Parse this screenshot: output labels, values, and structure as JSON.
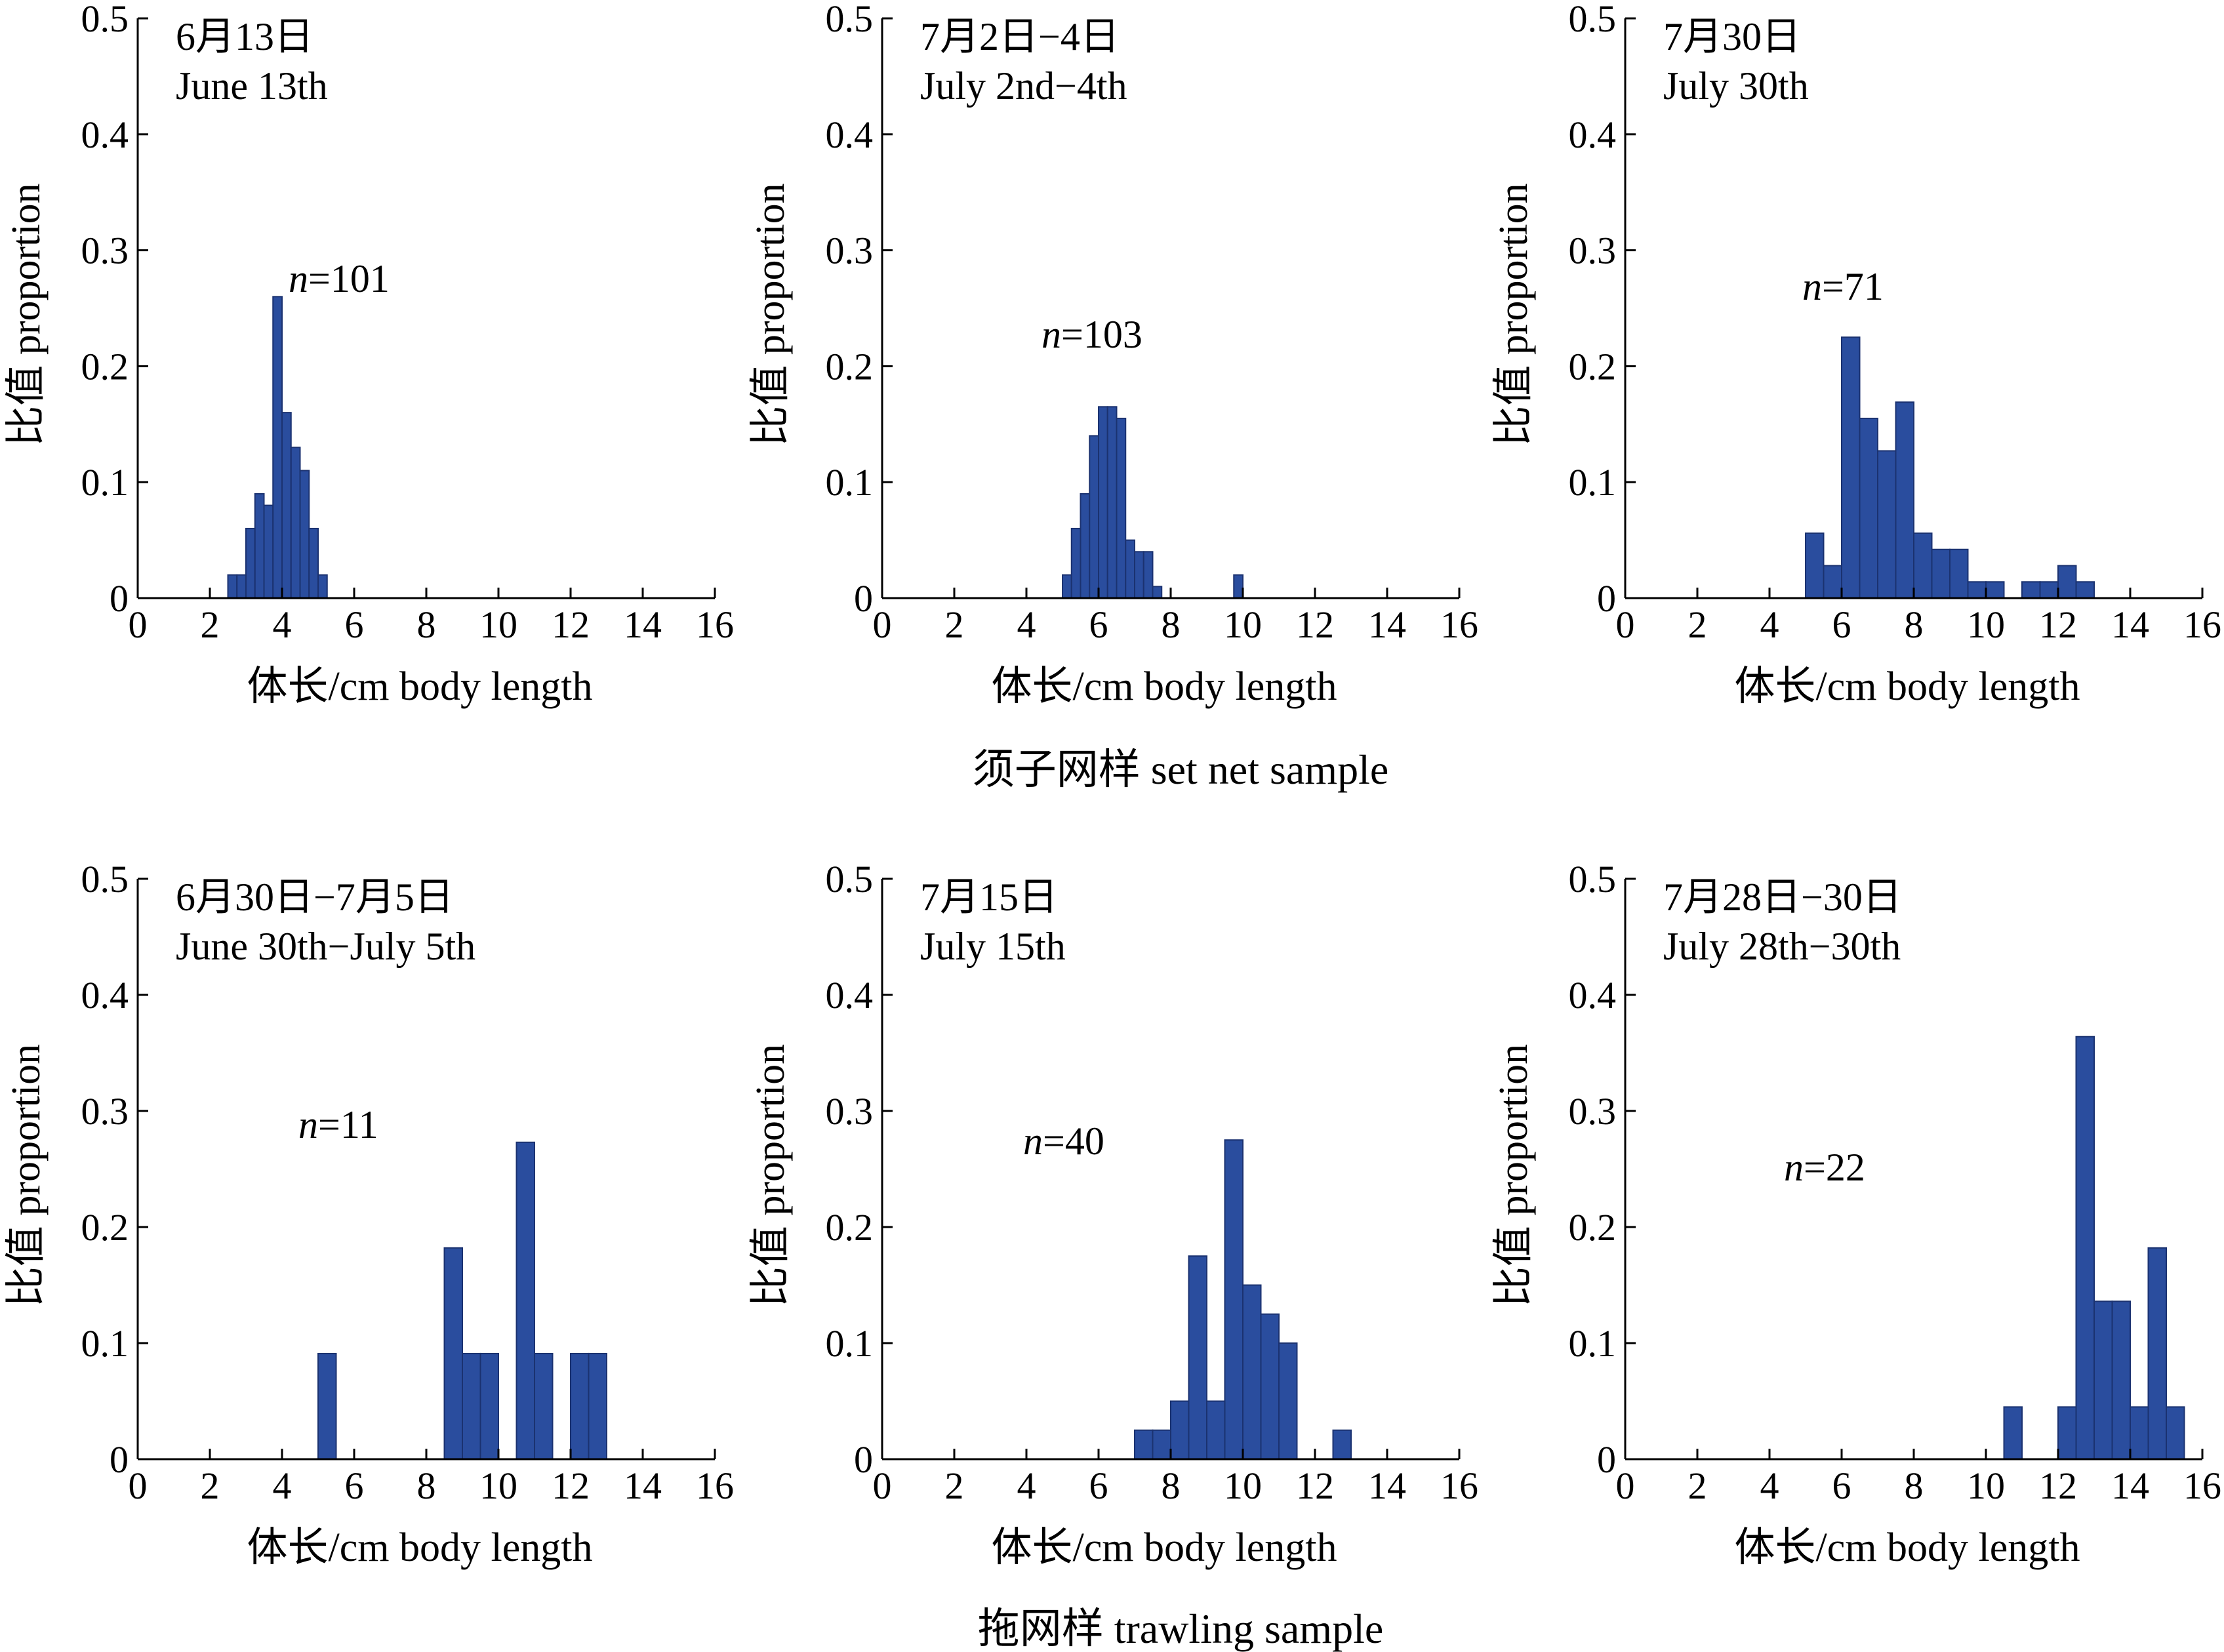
{
  "bar_color": "#2a4d9e",
  "bar_edge": "#1b3270",
  "groups": [
    {
      "label": "须子网样 set net sample"
    },
    {
      "label": "拖网样 trawling sample"
    }
  ],
  "chart_data": [
    {
      "type": "bar",
      "group": 0,
      "date_cn": "6月13日",
      "date_en": "June 13th",
      "n_prefix": "n",
      "n_value": "=101",
      "xlabel": "体长/cm body length",
      "ylabel": "比值 proportion",
      "xlim": [
        0,
        16
      ],
      "ylim": [
        0,
        0.5
      ],
      "bin_width": 0.25,
      "xticks": [
        "0",
        "2",
        "4",
        "6",
        "8",
        "10",
        "12",
        "14",
        "16"
      ],
      "yticks": [
        "0",
        "0.1",
        "0.2",
        "0.3",
        "0.4",
        "0.5"
      ],
      "bins": [
        [
          2.5,
          0.02
        ],
        [
          2.75,
          0.02
        ],
        [
          3.0,
          0.06
        ],
        [
          3.25,
          0.09
        ],
        [
          3.5,
          0.08
        ],
        [
          3.75,
          0.26
        ],
        [
          4.0,
          0.16
        ],
        [
          4.25,
          0.13
        ],
        [
          4.5,
          0.11
        ],
        [
          4.75,
          0.06
        ],
        [
          5.0,
          0.02
        ]
      ]
    },
    {
      "type": "bar",
      "group": 0,
      "date_cn": "7月2日−4日",
      "date_en": "July 2nd−4th",
      "n_prefix": "n",
      "n_value": "=103",
      "xlabel": "体长/cm body length",
      "ylabel": "比值 proportion",
      "xlim": [
        0,
        16
      ],
      "ylim": [
        0,
        0.5
      ],
      "bin_width": 0.25,
      "xticks": [
        "0",
        "2",
        "4",
        "6",
        "8",
        "10",
        "12",
        "14",
        "16"
      ],
      "yticks": [
        "0",
        "0.1",
        "0.2",
        "0.3",
        "0.4",
        "0.5"
      ],
      "bins": [
        [
          5.0,
          0.02
        ],
        [
          5.25,
          0.06
        ],
        [
          5.5,
          0.09
        ],
        [
          5.75,
          0.14
        ],
        [
          6.0,
          0.165
        ],
        [
          6.25,
          0.165
        ],
        [
          6.5,
          0.155
        ],
        [
          6.75,
          0.05
        ],
        [
          7.0,
          0.04
        ],
        [
          7.25,
          0.04
        ],
        [
          7.5,
          0.01
        ],
        [
          9.75,
          0.02
        ]
      ]
    },
    {
      "type": "bar",
      "group": 0,
      "date_cn": "7月30日",
      "date_en": "July 30th",
      "n_prefix": "n",
      "n_value": "=71",
      "xlabel": "体长/cm body length",
      "ylabel": "比值 proportion",
      "xlim": [
        0,
        16
      ],
      "ylim": [
        0,
        0.5
      ],
      "bin_width": 0.5,
      "xticks": [
        "0",
        "2",
        "4",
        "6",
        "8",
        "10",
        "12",
        "14",
        "16"
      ],
      "yticks": [
        "0",
        "0.1",
        "0.2",
        "0.3",
        "0.4",
        "0.5"
      ],
      "bins": [
        [
          5.0,
          0.056
        ],
        [
          5.5,
          0.028
        ],
        [
          6.0,
          0.225
        ],
        [
          6.5,
          0.155
        ],
        [
          7.0,
          0.127
        ],
        [
          7.5,
          0.169
        ],
        [
          8.0,
          0.056
        ],
        [
          8.5,
          0.042
        ],
        [
          9.0,
          0.042
        ],
        [
          9.5,
          0.014
        ],
        [
          10.0,
          0.014
        ],
        [
          11.0,
          0.014
        ],
        [
          11.5,
          0.014
        ],
        [
          12.0,
          0.028
        ],
        [
          12.5,
          0.014
        ]
      ]
    },
    {
      "type": "bar",
      "group": 1,
      "date_cn": "6月30日−7月5日",
      "date_en": "June 30th−July 5th",
      "n_prefix": "n",
      "n_value": "=11",
      "xlabel": "体长/cm body length",
      "ylabel": "比值 proportion",
      "xlim": [
        0,
        16
      ],
      "ylim": [
        0,
        0.5
      ],
      "bin_width": 0.5,
      "xticks": [
        "0",
        "2",
        "4",
        "6",
        "8",
        "10",
        "12",
        "14",
        "16"
      ],
      "yticks": [
        "0",
        "0.1",
        "0.2",
        "0.3",
        "0.4",
        "0.5"
      ],
      "bins": [
        [
          5.0,
          0.091
        ],
        [
          8.5,
          0.182
        ],
        [
          9.0,
          0.091
        ],
        [
          9.5,
          0.091
        ],
        [
          10.5,
          0.273
        ],
        [
          11.0,
          0.091
        ],
        [
          12.0,
          0.091
        ],
        [
          12.5,
          0.091
        ]
      ]
    },
    {
      "type": "bar",
      "group": 1,
      "date_cn": "7月15日",
      "date_en": "July 15th",
      "n_prefix": "n",
      "n_value": "=40",
      "xlabel": "体长/cm body length",
      "ylabel": "比值 proportion",
      "xlim": [
        0,
        16
      ],
      "ylim": [
        0,
        0.5
      ],
      "bin_width": 0.5,
      "xticks": [
        "0",
        "2",
        "4",
        "6",
        "8",
        "10",
        "12",
        "14",
        "16"
      ],
      "yticks": [
        "0",
        "0.1",
        "0.2",
        "0.3",
        "0.4",
        "0.5"
      ],
      "bins": [
        [
          7.0,
          0.025
        ],
        [
          7.5,
          0.025
        ],
        [
          8.0,
          0.05
        ],
        [
          8.5,
          0.175
        ],
        [
          9.0,
          0.05
        ],
        [
          9.5,
          0.275
        ],
        [
          10.0,
          0.15
        ],
        [
          10.5,
          0.125
        ],
        [
          11.0,
          0.1
        ],
        [
          12.5,
          0.025
        ]
      ]
    },
    {
      "type": "bar",
      "group": 1,
      "date_cn": "7月28日−30日",
      "date_en": "July 28th−30th",
      "n_prefix": "n",
      "n_value": "=22",
      "xlabel": "体长/cm body length",
      "ylabel": "比值 proportion",
      "xlim": [
        0,
        16
      ],
      "ylim": [
        0,
        0.5
      ],
      "bin_width": 0.5,
      "xticks": [
        "0",
        "2",
        "4",
        "6",
        "8",
        "10",
        "12",
        "14",
        "16"
      ],
      "yticks": [
        "0",
        "0.1",
        "0.2",
        "0.3",
        "0.4",
        "0.5"
      ],
      "bins": [
        [
          10.5,
          0.045
        ],
        [
          12.0,
          0.045
        ],
        [
          12.5,
          0.364
        ],
        [
          13.0,
          0.136
        ],
        [
          13.5,
          0.136
        ],
        [
          14.0,
          0.045
        ],
        [
          14.5,
          0.182
        ],
        [
          15.0,
          0.045
        ]
      ]
    }
  ]
}
